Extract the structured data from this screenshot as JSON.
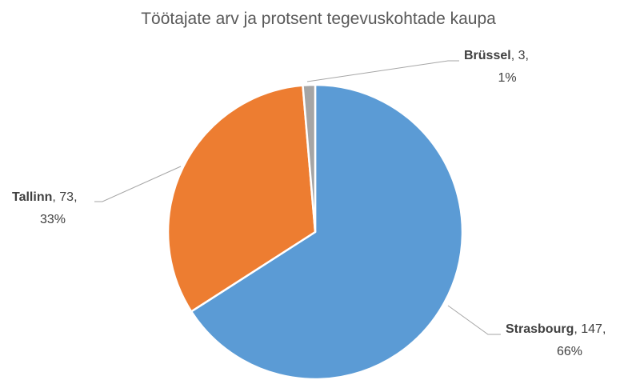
{
  "chart_data": {
    "type": "pie",
    "title": "Töötajate arv ja protsent tegevuskohtade kaupa",
    "categories": [
      "Strasbourg",
      "Tallinn",
      "Brüssel"
    ],
    "values": [
      147,
      73,
      3
    ],
    "percent_labels": [
      "66%",
      "33%",
      "1%"
    ],
    "colors": [
      "#5b9bd5",
      "#ed7d31",
      "#a5a5a5"
    ],
    "start_angle": 0,
    "direction": "clockwise"
  }
}
